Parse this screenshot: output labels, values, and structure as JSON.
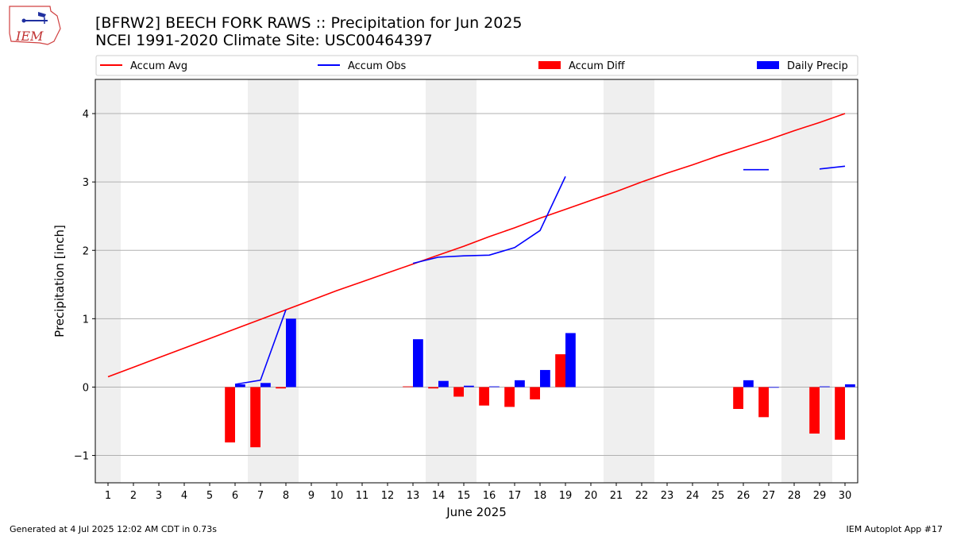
{
  "header": {
    "title_line1": "[BFRW2] BEECH FORK RAWS :: Precipitation for Jun 2025",
    "title_line2": "NCEI 1991-2020 Climate Site: USC00464397"
  },
  "logo": {
    "text": "IEM"
  },
  "footer": {
    "left": "Generated at 4 Jul 2025 12:02 AM CDT in 0.73s",
    "right": "IEM Autoplot App #17"
  },
  "colors": {
    "avg": "#ff0000",
    "obs": "#0000ff",
    "diff": "#ff0000",
    "precip": "#0000ff",
    "weekend": "#efefef",
    "grid": "#b0b0b0"
  },
  "chart_data": {
    "type": "bar",
    "xlabel": "June 2025",
    "ylabel": "Precipitation [inch]",
    "xlim": [
      0.5,
      30.5
    ],
    "ylim": [
      -1.4,
      4.5
    ],
    "yticks": [
      -1,
      0,
      1,
      2,
      3,
      4
    ],
    "days": [
      1,
      2,
      3,
      4,
      5,
      6,
      7,
      8,
      9,
      10,
      11,
      12,
      13,
      14,
      15,
      16,
      17,
      18,
      19,
      20,
      21,
      22,
      23,
      24,
      25,
      26,
      27,
      28,
      29,
      30
    ],
    "weekend_days": [
      1,
      7,
      8,
      14,
      15,
      21,
      22,
      28,
      29
    ],
    "grid": "y",
    "legend": {
      "placement": "top",
      "entries": [
        {
          "label": "Accum Avg",
          "style": "line",
          "color": "#ff0000"
        },
        {
          "label": "Accum Obs",
          "style": "line",
          "color": "#0000ff"
        },
        {
          "label": "Accum Diff",
          "style": "bar",
          "color": "#ff0000"
        },
        {
          "label": "Daily Precip",
          "style": "bar",
          "color": "#0000ff"
        }
      ]
    },
    "series": [
      {
        "name": "Accum Avg",
        "type": "line",
        "color": "#ff0000",
        "values": [
          0.15,
          0.29,
          0.43,
          0.57,
          0.71,
          0.85,
          0.99,
          1.13,
          1.27,
          1.41,
          1.54,
          1.67,
          1.8,
          1.93,
          2.06,
          2.2,
          2.33,
          2.47,
          2.6,
          2.73,
          2.86,
          3.0,
          3.13,
          3.25,
          3.38,
          3.5,
          3.62,
          3.75,
          3.87,
          4.0
        ]
      },
      {
        "name": "Accum Obs",
        "type": "line",
        "color": "#0000ff",
        "values": [
          null,
          null,
          null,
          null,
          null,
          0.04,
          0.1,
          1.13,
          null,
          null,
          null,
          null,
          1.81,
          1.9,
          1.92,
          1.93,
          2.04,
          2.29,
          3.08,
          null,
          null,
          null,
          null,
          null,
          null,
          3.18,
          3.18,
          null,
          3.19,
          3.23
        ]
      },
      {
        "name": "Accum Diff",
        "type": "bar",
        "color": "#ff0000",
        "values": [
          null,
          null,
          null,
          null,
          null,
          -0.81,
          -0.88,
          -0.02,
          null,
          null,
          null,
          null,
          0.01,
          -0.02,
          -0.14,
          -0.27,
          -0.29,
          -0.18,
          0.48,
          null,
          null,
          null,
          null,
          null,
          null,
          -0.32,
          -0.44,
          null,
          -0.68,
          -0.77
        ]
      },
      {
        "name": "Daily Precip",
        "type": "bar",
        "color": "#0000ff",
        "values": [
          null,
          null,
          null,
          null,
          null,
          0.04,
          0.06,
          1.0,
          null,
          null,
          null,
          null,
          0.7,
          0.09,
          0.02,
          0.01,
          0.1,
          0.25,
          0.79,
          null,
          null,
          null,
          null,
          null,
          null,
          0.1,
          0.0,
          null,
          0.01,
          0.04
        ]
      }
    ]
  }
}
